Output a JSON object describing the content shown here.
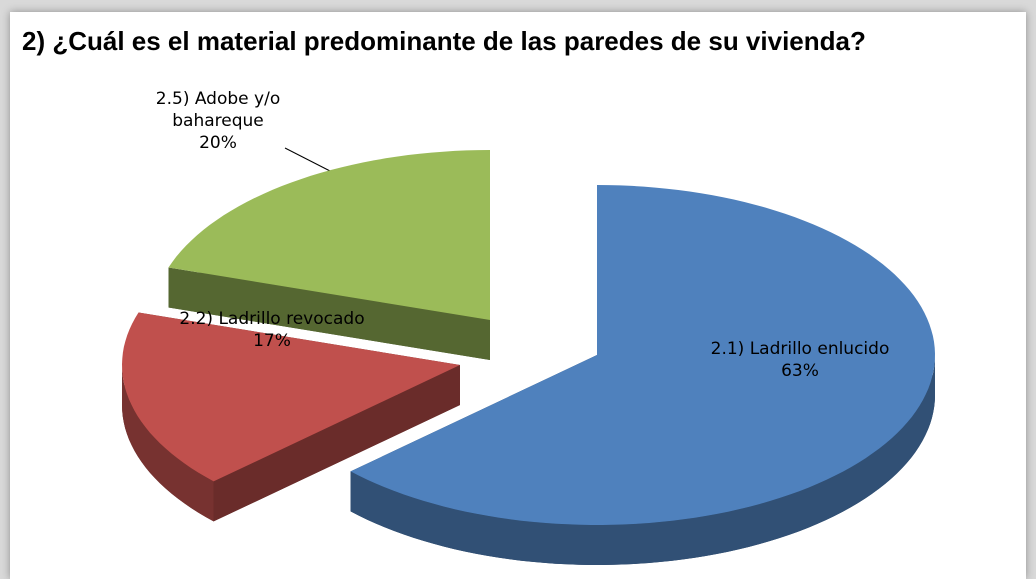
{
  "chart_data": {
    "type": "pie3d",
    "title": "2) ¿Cuál es el material predominante de las paredes de su vivienda?",
    "categories": [
      "2.1) Ladrillo enlucido",
      "2.2) Ladrillo revocado",
      "2.5) Adobe y/o bahareque"
    ],
    "values": [
      63,
      17,
      20
    ],
    "value_labels": [
      "63%",
      "17%",
      "20%"
    ],
    "colors": [
      "#4f81bd",
      "#c0504d",
      "#9bbb59"
    ]
  }
}
